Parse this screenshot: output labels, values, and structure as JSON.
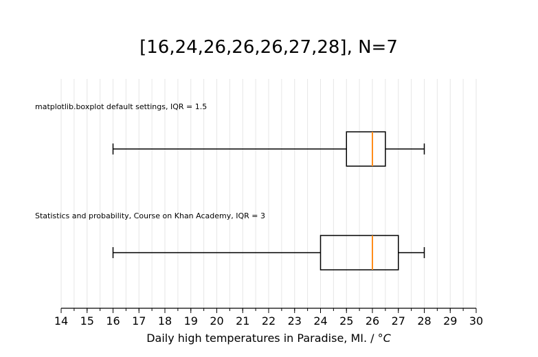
{
  "chart_data": {
    "type": "boxplot",
    "title": "[16,24,26,26,26,27,28], N=7",
    "xlabel_text": "Daily high temperatures in Paradise, MI. / ",
    "xlabel_unit": "°C",
    "xlim": [
      14,
      30
    ],
    "major_ticks": [
      14,
      15,
      16,
      17,
      18,
      19,
      20,
      21,
      22,
      23,
      24,
      25,
      26,
      27,
      28,
      29,
      30
    ],
    "minor_step": 0.5,
    "grid": "vertical minor",
    "median_color": "#ff8c1a",
    "boxes": [
      {
        "label": "matplotlib.boxplot default settings, IQR = 1.5",
        "whisker_low": 16,
        "q1": 25,
        "median": 26,
        "q3": 26.5,
        "whisker_high": 28
      },
      {
        "label": "Statistics and probability, Course on Khan Academy, IQR =  3",
        "whisker_low": 16,
        "q1": 24,
        "median": 26,
        "q3": 27,
        "whisker_high": 28
      }
    ]
  }
}
